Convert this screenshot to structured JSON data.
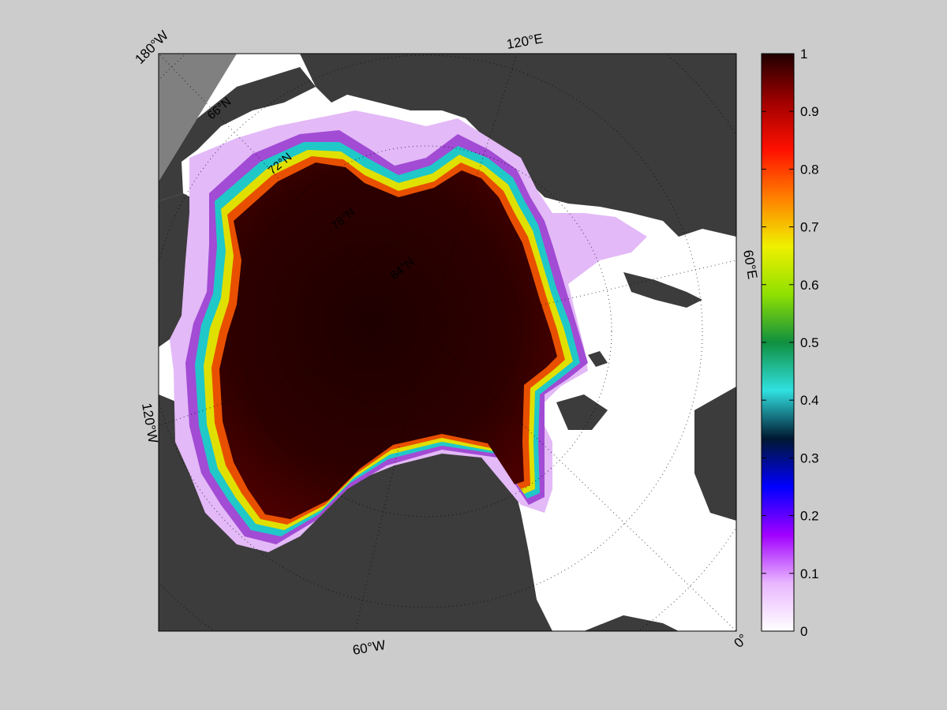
{
  "map": {
    "longitude_labels": [
      {
        "id": "180w",
        "text": "180°W"
      },
      {
        "id": "120e",
        "text": "120°E"
      },
      {
        "id": "60e",
        "text": "60°E"
      },
      {
        "id": "120w",
        "text": "120°W"
      },
      {
        "id": "60w",
        "text": "60°W"
      },
      {
        "id": "0",
        "text": "0°"
      }
    ],
    "latitude_labels": [
      {
        "id": "66n",
        "text": "66°N"
      },
      {
        "id": "72n",
        "text": "72°N"
      },
      {
        "id": "78n",
        "text": "78°N"
      },
      {
        "id": "84n",
        "text": "84°N"
      }
    ],
    "colors": {
      "ocean_open_water": "#ffffff",
      "land": "#3c3c3c",
      "out_of_domain": "#808080",
      "figure_background": "#cccccc"
    }
  },
  "colorbar": {
    "min": 0,
    "max": 1,
    "ticks": [
      "0",
      "0.1",
      "0.2",
      "0.3",
      "0.4",
      "0.5",
      "0.6",
      "0.7",
      "0.8",
      "0.9",
      "1"
    ],
    "colormap": [
      "#ffffff",
      "#e9b6ff",
      "#a000ff",
      "#0000ff",
      "#001830",
      "#30e0e0",
      "#109040",
      "#90e000",
      "#f0f000",
      "#ff8000",
      "#ff1000",
      "#a00000",
      "#200000"
    ]
  }
}
